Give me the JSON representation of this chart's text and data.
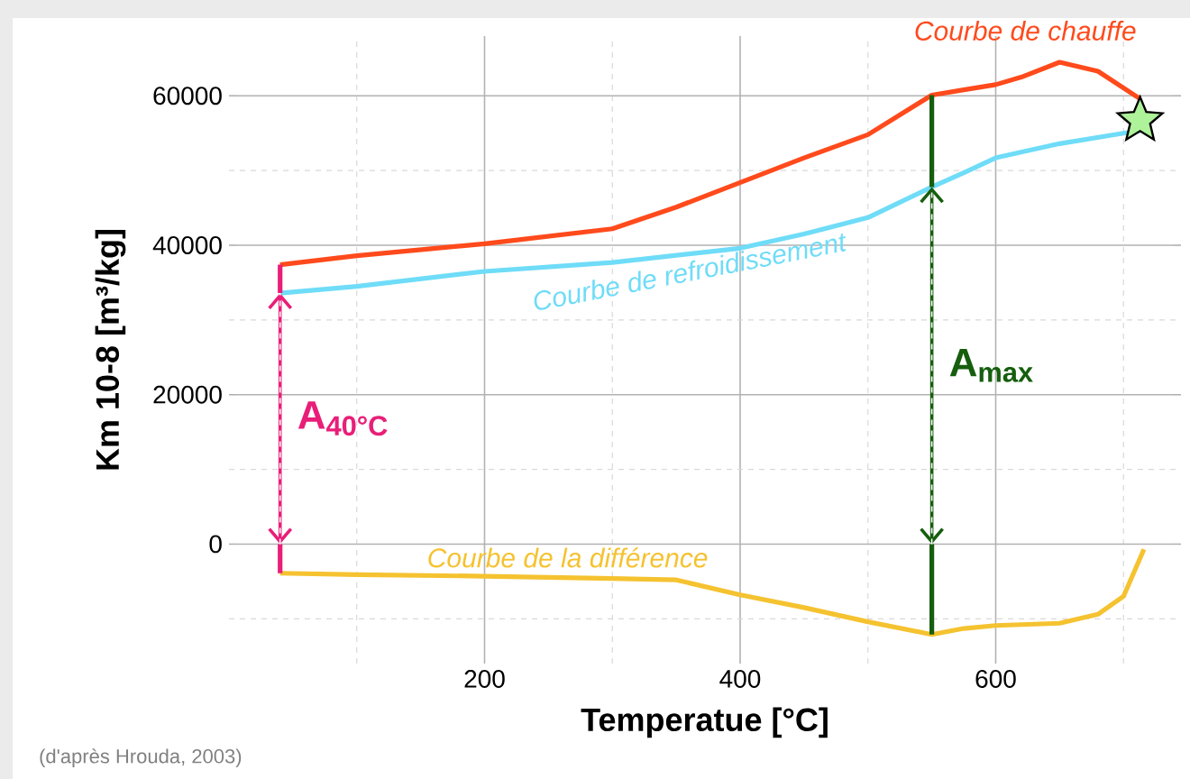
{
  "chart_data": {
    "type": "line",
    "xlabel": "Temperatue [°C]",
    "ylabel": "Km 10-8 [m³/kg]",
    "xlim": [
      0,
      745
    ],
    "ylim": [
      -16000,
      68000
    ],
    "xticks": [
      {
        "value": 100,
        "label": null
      },
      200,
      {
        "value": 300,
        "label": null
      },
      400,
      {
        "value": 500,
        "label": null
      },
      600,
      {
        "value": 700,
        "label": null
      }
    ],
    "yticks": [
      {
        "value": -10000,
        "label": null
      },
      0,
      {
        "value": 10000,
        "label": null
      },
      20000,
      {
        "value": 30000,
        "label": null
      },
      40000,
      {
        "value": 50000,
        "label": null
      },
      60000
    ],
    "grid": true,
    "line_style": "solid",
    "marker": "none",
    "series": [
      {
        "name": "Courbe de chauffe",
        "color": "#ff4a1c",
        "x": [
          40,
          100,
          200,
          300,
          350,
          400,
          450,
          500,
          550,
          575,
          600,
          620,
          650,
          680,
          713
        ],
        "values": [
          37400,
          38600,
          40200,
          42200,
          45100,
          48400,
          51700,
          54800,
          60100,
          60800,
          61500,
          62500,
          64500,
          63300,
          59600
        ]
      },
      {
        "name": "Courbe de refroidissement",
        "color": "#6fdcf8",
        "x": [
          40,
          100,
          200,
          300,
          400,
          450,
          500,
          550,
          575,
          600,
          650,
          700,
          713
        ],
        "values": [
          33600,
          34500,
          36500,
          37700,
          39600,
          41500,
          43700,
          47800,
          49700,
          51700,
          53600,
          55000,
          55300
        ]
      },
      {
        "name": "Courbe de la différence",
        "color": "#f5c230",
        "x": [
          40,
          100,
          200,
          300,
          350,
          400,
          450,
          500,
          550,
          575,
          600,
          650,
          680,
          700,
          716
        ],
        "values": [
          -3900,
          -4100,
          -4300,
          -4600,
          -4800,
          -6800,
          -8500,
          -10400,
          -12100,
          -11300,
          -10900,
          -10600,
          -9400,
          -7000,
          -700
        ]
      },
      {
        "type": "scatter",
        "marker": "star",
        "color": "#aef29a",
        "x": [
          713
        ],
        "values": [
          56700
        ]
      }
    ],
    "annotations": [
      "A$_{40°C}$",
      "A$_{max}$",
      "(d'après Hrouda, 2003)"
    ]
  }
}
